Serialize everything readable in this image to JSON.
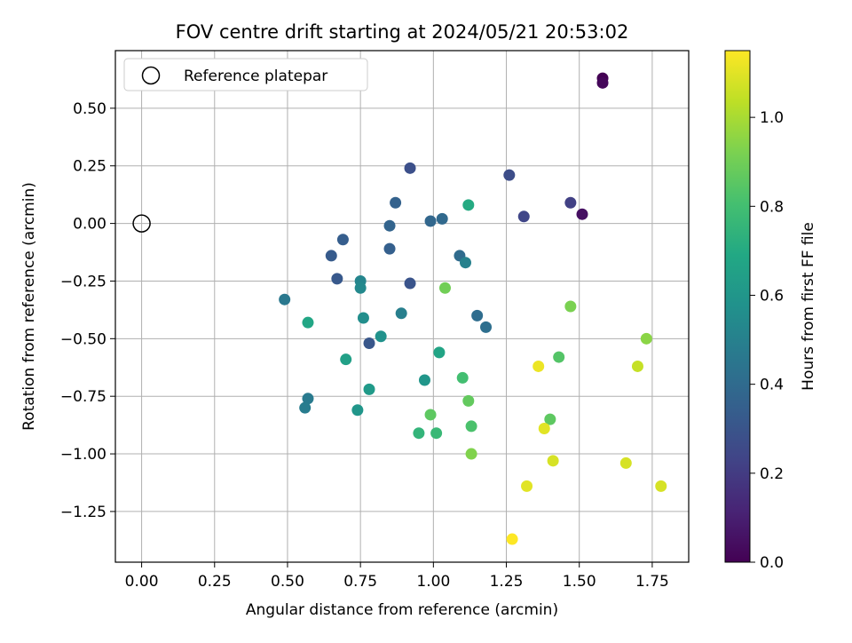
{
  "chart_data": {
    "type": "scatter",
    "title": "FOV centre drift starting at 2024/05/21 20:53:02",
    "xlabel": "Angular distance from reference (arcmin)",
    "ylabel": "Rotation from reference (arcmin)",
    "xlim": [
      -0.09,
      1.875
    ],
    "ylim": [
      -1.47,
      0.75
    ],
    "x_ticks": [
      0.0,
      0.25,
      0.5,
      0.75,
      1.0,
      1.25,
      1.5,
      1.75
    ],
    "x_tick_labels": [
      "0.00",
      "0.25",
      "0.50",
      "0.75",
      "1.00",
      "1.25",
      "1.50",
      "1.75"
    ],
    "y_ticks": [
      0.5,
      0.25,
      0.0,
      -0.25,
      -0.5,
      -0.75,
      -1.0,
      -1.25
    ],
    "y_tick_labels": [
      "0.50",
      "0.25",
      "0.00",
      "−0.25",
      "−0.50",
      "−0.75",
      "−1.00",
      "−1.25"
    ],
    "grid": true,
    "legend": {
      "position": "top-left",
      "entries": [
        "Reference platepar"
      ]
    },
    "reference_point": {
      "x": 0.0,
      "y": 0.0
    },
    "colorbar": {
      "label": "Hours from first FF file",
      "range": [
        0.0,
        1.15
      ],
      "ticks": [
        0.0,
        0.2,
        0.4,
        0.6,
        0.8,
        1.0
      ],
      "tick_labels": [
        "0.0",
        "0.2",
        "0.4",
        "0.6",
        "0.8",
        "1.0"
      ],
      "colormap": "viridis"
    },
    "points": [
      {
        "x": 1.58,
        "y": 0.63,
        "hours": 0.0
      },
      {
        "x": 1.58,
        "y": 0.61,
        "hours": 0.02
      },
      {
        "x": 1.51,
        "y": 0.04,
        "hours": 0.05
      },
      {
        "x": 1.47,
        "y": 0.09,
        "hours": 0.22
      },
      {
        "x": 1.31,
        "y": 0.03,
        "hours": 0.24
      },
      {
        "x": 1.26,
        "y": 0.21,
        "hours": 0.27
      },
      {
        "x": 0.92,
        "y": 0.24,
        "hours": 0.28
      },
      {
        "x": 0.92,
        "y": -0.26,
        "hours": 0.3
      },
      {
        "x": 0.78,
        "y": -0.52,
        "hours": 0.31
      },
      {
        "x": 0.67,
        "y": -0.24,
        "hours": 0.32
      },
      {
        "x": 0.65,
        "y": -0.14,
        "hours": 0.33
      },
      {
        "x": 0.69,
        "y": -0.07,
        "hours": 0.34
      },
      {
        "x": 0.85,
        "y": -0.11,
        "hours": 0.35
      },
      {
        "x": 0.87,
        "y": 0.09,
        "hours": 0.36
      },
      {
        "x": 0.85,
        "y": -0.01,
        "hours": 0.37
      },
      {
        "x": 0.99,
        "y": 0.01,
        "hours": 0.38
      },
      {
        "x": 1.03,
        "y": 0.02,
        "hours": 0.39
      },
      {
        "x": 1.09,
        "y": -0.14,
        "hours": 0.4
      },
      {
        "x": 1.15,
        "y": -0.4,
        "hours": 0.41
      },
      {
        "x": 1.18,
        "y": -0.45,
        "hours": 0.42
      },
      {
        "x": 0.49,
        "y": -0.33,
        "hours": 0.46
      },
      {
        "x": 0.57,
        "y": -0.76,
        "hours": 0.47
      },
      {
        "x": 0.56,
        "y": -0.8,
        "hours": 0.48
      },
      {
        "x": 0.89,
        "y": -0.39,
        "hours": 0.49
      },
      {
        "x": 1.11,
        "y": -0.17,
        "hours": 0.5
      },
      {
        "x": 0.75,
        "y": -0.25,
        "hours": 0.52
      },
      {
        "x": 0.75,
        "y": -0.28,
        "hours": 0.54
      },
      {
        "x": 0.76,
        "y": -0.41,
        "hours": 0.56
      },
      {
        "x": 0.82,
        "y": -0.49,
        "hours": 0.58
      },
      {
        "x": 0.97,
        "y": -0.68,
        "hours": 0.6
      },
      {
        "x": 0.74,
        "y": -0.81,
        "hours": 0.6
      },
      {
        "x": 0.78,
        "y": -0.72,
        "hours": 0.62
      },
      {
        "x": 0.7,
        "y": -0.59,
        "hours": 0.65
      },
      {
        "x": 1.02,
        "y": -0.56,
        "hours": 0.67
      },
      {
        "x": 0.57,
        "y": -0.43,
        "hours": 0.68
      },
      {
        "x": 1.12,
        "y": 0.08,
        "hours": 0.7
      },
      {
        "x": 0.95,
        "y": -0.91,
        "hours": 0.75
      },
      {
        "x": 1.01,
        "y": -0.91,
        "hours": 0.77
      },
      {
        "x": 1.1,
        "y": -0.67,
        "hours": 0.8
      },
      {
        "x": 1.13,
        "y": -0.88,
        "hours": 0.82
      },
      {
        "x": 1.43,
        "y": -0.58,
        "hours": 0.84
      },
      {
        "x": 1.4,
        "y": -0.85,
        "hours": 0.86
      },
      {
        "x": 0.99,
        "y": -0.83,
        "hours": 0.86
      },
      {
        "x": 1.12,
        "y": -0.77,
        "hours": 0.87
      },
      {
        "x": 1.04,
        "y": -0.28,
        "hours": 0.9
      },
      {
        "x": 1.47,
        "y": -0.36,
        "hours": 0.92
      },
      {
        "x": 1.13,
        "y": -1.0,
        "hours": 0.93
      },
      {
        "x": 1.73,
        "y": -0.5,
        "hours": 0.95
      },
      {
        "x": 1.7,
        "y": -0.62,
        "hours": 1.05
      },
      {
        "x": 1.66,
        "y": -1.04,
        "hours": 1.08
      },
      {
        "x": 1.41,
        "y": -1.03,
        "hours": 1.08
      },
      {
        "x": 1.78,
        "y": -1.14,
        "hours": 1.08
      },
      {
        "x": 1.32,
        "y": -1.14,
        "hours": 1.1
      },
      {
        "x": 1.38,
        "y": -0.89,
        "hours": 1.1
      },
      {
        "x": 1.36,
        "y": -0.62,
        "hours": 1.12
      },
      {
        "x": 1.27,
        "y": -1.37,
        "hours": 1.15
      }
    ]
  }
}
